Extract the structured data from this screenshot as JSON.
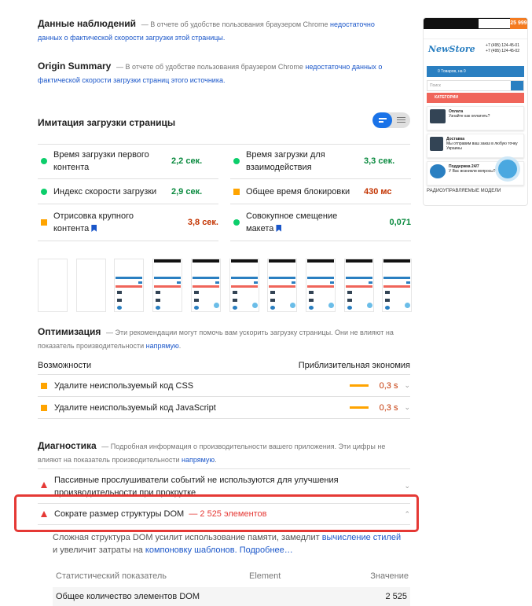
{
  "field_data": {
    "title": "Данные наблюдений",
    "desc": "— В отчете об удобстве пользования браузером Chrome ",
    "link": "недостаточно данных о фактической скорости загрузки этой страницы."
  },
  "origin_summary": {
    "title": "Origin Summary",
    "desc": "— В отчете об удобстве пользования браузером Chrome ",
    "link": "недостаточно данных о фактической скорости загрузки страниц этого источника."
  },
  "lab": {
    "title": "Имитация загрузки страницы",
    "metrics": [
      {
        "label": "Время загрузки первого контента",
        "value": "2,2 сек.",
        "status": "pass",
        "bookmark": false
      },
      {
        "label": "Время загрузки для взаимодействия",
        "value": "3,3 сек.",
        "status": "pass",
        "bookmark": false
      },
      {
        "label": "Индекс скорости загрузки",
        "value": "2,9 сек.",
        "status": "pass",
        "bookmark": false
      },
      {
        "label": "Общее время блокировки",
        "value": "430 мс",
        "status": "average",
        "bookmark": false
      },
      {
        "label": "Отрисовка крупного контента",
        "value": "3,8 сек.",
        "status": "average",
        "bookmark": true
      },
      {
        "label": "Совокупное смещение макета",
        "value": "0,071",
        "status": "pass",
        "bookmark": true
      }
    ]
  },
  "screenshot": {
    "logo": "NewStore",
    "phone1": "+7 (495) 124-45-01",
    "phone2": "+7 (495) 124-45-02",
    "cart": "0 Товаров, на 0",
    "search_placeholder": "Поиск",
    "categories": "КАТЕГОРИИ",
    "cards": [
      {
        "title": "Оплата",
        "text": "Узнайте как оплатить?"
      },
      {
        "title": "Доставка",
        "text": "Мы отправим ваш заказ в любую точку Украины"
      },
      {
        "title": "Поддержка 24/7",
        "text": "У Вас возникли вопросы?"
      }
    ],
    "footer": "РАДИОУПРАВЛЯЕМЫЕ МОДЕЛИ",
    "promo": "25 999"
  },
  "opportunities": {
    "title": "Оптимизация",
    "desc": "— Эти рекомендации могут помочь вам ускорить загрузку страницы. Они не влияют на показатель производительности ",
    "link": "напрямую",
    "col1": "Возможности",
    "col2": "Приблизительная экономия",
    "items": [
      {
        "label": "Удалите неиспользуемый код CSS",
        "value": "0,3 s"
      },
      {
        "label": "Удалите неиспользуемый код JavaScript",
        "value": "0,3 s"
      }
    ]
  },
  "diagnostics": {
    "title": "Диагностика",
    "desc": "— Подробная информация о производительности вашего приложения. Эти цифры не влияют на показатель производительности ",
    "link": "напрямую",
    "item1": "Пассивные прослушиватели событий не используются для улучшения производительности при прокрутке",
    "item2": {
      "label": "Сократе размер структуры DOM",
      "extra": "— 2 525 элементов"
    },
    "detail": {
      "t1": "Сложная структура DOM усилит использование памяти, замедлит ",
      "l1": "вычисление стилей",
      "t2": "и увеличит затраты на ",
      "l2": "компоновку шаблонов.",
      "l3": "Подробнее…"
    },
    "table": {
      "headers": [
        "Статистический показатель",
        "Element",
        "Значение"
      ],
      "rows": [
        [
          "Общее количество элементов DOM",
          "",
          "2 525"
        ]
      ]
    }
  },
  "colors": {
    "pass": "#0cce6b",
    "average": "#ffa400",
    "fail": "#e53935",
    "link": "#1a56c9",
    "highlight": "#e53935"
  }
}
